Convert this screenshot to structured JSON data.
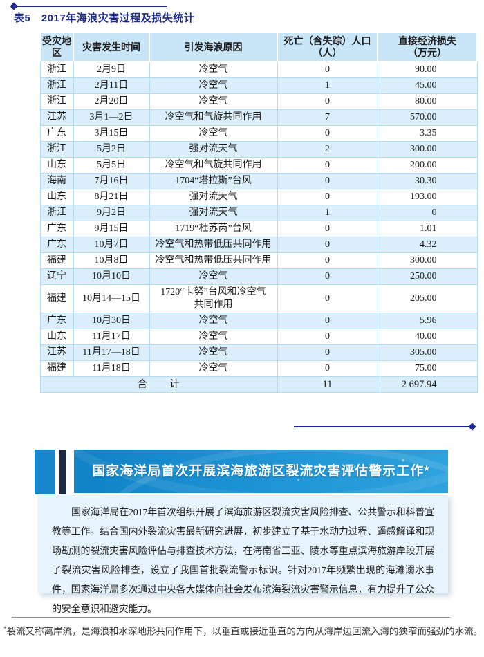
{
  "caption": "表5　2017年海浪灾害过程及损失统计",
  "table": {
    "headers": {
      "region": "受灾地区",
      "date": "灾害发生时间",
      "cause": "引发海浪原因",
      "deaths_line1": "死亡（含失踪）人口",
      "deaths_line2": "（人）",
      "loss_line1": "直接经济损失",
      "loss_line2": "（万元）"
    },
    "rows": [
      {
        "region": "浙江",
        "date": "2月9日",
        "cause": "冷空气",
        "deaths": "0",
        "loss": "90.00"
      },
      {
        "region": "浙江",
        "date": "2月11日",
        "cause": "冷空气",
        "deaths": "1",
        "loss": "45.00"
      },
      {
        "region": "浙江",
        "date": "2月20日",
        "cause": "冷空气",
        "deaths": "0",
        "loss": "80.00"
      },
      {
        "region": "江苏",
        "date": "3月1—2日",
        "cause": "冷空气和气旋共同作用",
        "deaths": "7",
        "loss": "570.00"
      },
      {
        "region": "广东",
        "date": "3月15日",
        "cause": "冷空气",
        "deaths": "0",
        "loss": "3.35"
      },
      {
        "region": "浙江",
        "date": "5月2日",
        "cause": "强对流天气",
        "deaths": "2",
        "loss": "300.00"
      },
      {
        "region": "山东",
        "date": "5月5日",
        "cause": "冷空气和气旋共同作用",
        "deaths": "0",
        "loss": "200.00"
      },
      {
        "region": "海南",
        "date": "7月16日",
        "cause": "1704“塔拉斯”台风",
        "deaths": "0",
        "loss": "30.30"
      },
      {
        "region": "山东",
        "date": "8月21日",
        "cause": "强对流天气",
        "deaths": "0",
        "loss": "193.00"
      },
      {
        "region": "浙江",
        "date": "9月2日",
        "cause": "强对流天气",
        "deaths": "1",
        "loss": "0"
      },
      {
        "region": "广东",
        "date": "9月15日",
        "cause": "1719“杜苏芮”台风",
        "deaths": "0",
        "loss": "1.01"
      },
      {
        "region": "广东",
        "date": "10月7日",
        "cause": "冷空气和热带低压共同作用",
        "deaths": "0",
        "loss": "4.32"
      },
      {
        "region": "福建",
        "date": "10月8日",
        "cause": "冷空气和热带低压共同作用",
        "deaths": "0",
        "loss": "300.00"
      },
      {
        "region": "辽宁",
        "date": "10月10日",
        "cause": "冷空气",
        "deaths": "0",
        "loss": "250.00"
      },
      {
        "region": "福建",
        "date": "10月14—15日",
        "cause": "1720“卡努”台风和冷空气\n共同作用",
        "deaths": "0",
        "loss": "205.00"
      },
      {
        "region": "广东",
        "date": "10月30日",
        "cause": "冷空气",
        "deaths": "0",
        "loss": "5.96"
      },
      {
        "region": "山东",
        "date": "11月17日",
        "cause": "冷空气",
        "deaths": "0",
        "loss": "40.00"
      },
      {
        "region": "江苏",
        "date": "11月17—18日",
        "cause": "冷空气",
        "deaths": "0",
        "loss": "305.00"
      },
      {
        "region": "福建",
        "date": "11月18日",
        "cause": "冷空气",
        "deaths": "0",
        "loss": "75.00"
      }
    ],
    "total": {
      "label": "合　　计",
      "deaths": "11",
      "loss": "2 697.94"
    }
  },
  "infobox": {
    "title": "国家海洋局首次开展滨海旅游区裂流灾害评估警示工作*",
    "body": "国家海洋局在2017年首次组织开展了滨海旅游区裂流灾害风险排查、公共警示和科普宣教等工作。结合国内外裂流灾害最新研究进展，初步建立了基于水动力过程、遥感解译和现场勘测的裂流灾害风险评估与排查技术方法，在海南省三亚、陵水等重点滨海旅游岸段开展了裂流灾害风险排查，设立了我国首批裂流警示标识。针对2017年频繁出现的海滩溺水事件，国家海洋局多次通过中央各大媒体向社会发布滨海裂流灾害警示信息，有力提升了公众的安全意识和避灾能力。"
  },
  "footnote": {
    "marker": "*",
    "text": "裂流又称离岸流，是海浪和水深地形共同作用下，以垂直或接近垂直的方向从海岸边回流入海的狭窄而强劲的水流。"
  },
  "colors": {
    "navy_rule": "#1f2b8c",
    "caption_text": "#1c2b8a",
    "table_header_bg": "#c9e6f8",
    "row_alt_bg": "#daeefb",
    "table_border": "#a9d6ef",
    "banner_gradient_start": "#0f82c6",
    "banner_gradient_end": "#2fa3dc",
    "side_bar_blue": "#1687cb",
    "side_bar_navy": "#1e2840",
    "panel_bg": "#e7f4fd"
  }
}
